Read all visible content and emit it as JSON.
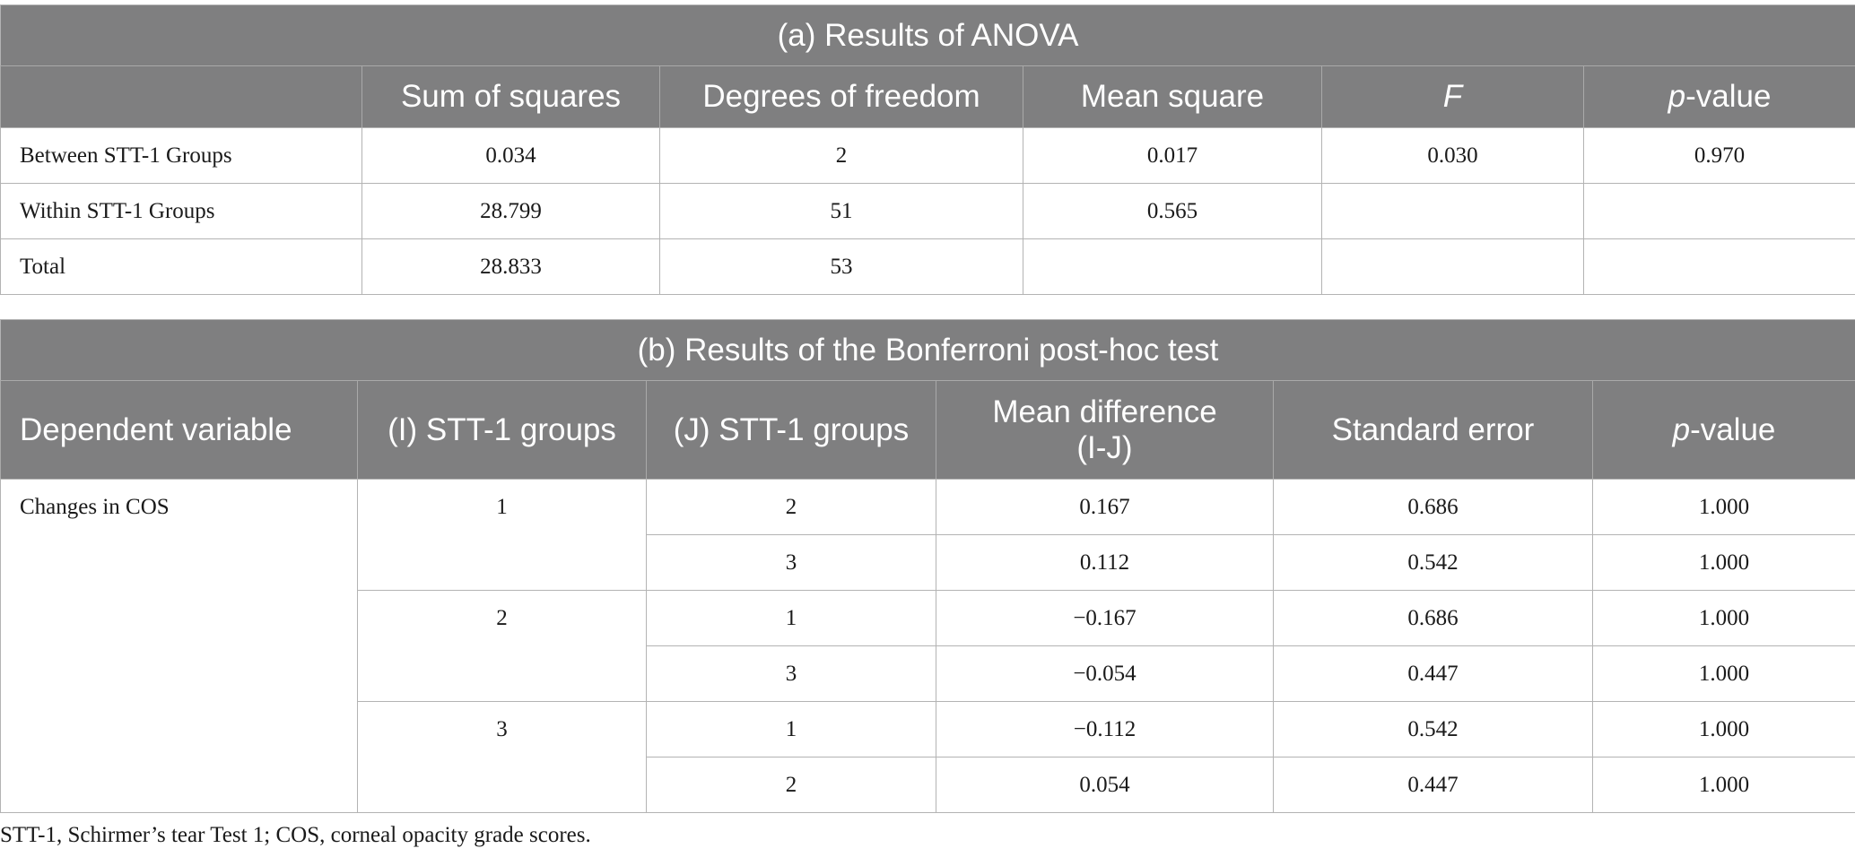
{
  "anova": {
    "title": "(a) Results of ANOVA",
    "headers": {
      "blank": "",
      "sum_of_squares": "Sum of squares",
      "df": "Degrees of freedom",
      "mean_square": "Mean square",
      "f": "F",
      "p_italic": "p",
      "p_suffix": "-value"
    },
    "rows": [
      {
        "label": "Between STT-1 Groups",
        "ss": "0.034",
        "df": "2",
        "ms": "0.017",
        "f": "0.030",
        "p": "0.970"
      },
      {
        "label": "Within STT-1 Groups",
        "ss": "28.799",
        "df": "51",
        "ms": "0.565",
        "f": "",
        "p": ""
      },
      {
        "label": "Total",
        "ss": "28.833",
        "df": "53",
        "ms": "",
        "f": "",
        "p": ""
      }
    ]
  },
  "bonferroni": {
    "title": "(b) Results of the Bonferroni post-hoc test",
    "headers": {
      "dependent_variable": "Dependent variable",
      "i_groups": "(I) STT-1 groups",
      "j_groups": "(J) STT-1 groups",
      "mean_diff_line1": "Mean difference",
      "mean_diff_line2": "(I-J)",
      "std_error": "Standard error",
      "p_italic": "p",
      "p_suffix": "-value"
    },
    "dependent_variable": "Changes in COS",
    "groups": [
      {
        "i": "1",
        "rows": [
          {
            "j": "2",
            "mean_diff": "0.167",
            "se": "0.686",
            "p": "1.000"
          },
          {
            "j": "3",
            "mean_diff": "0.112",
            "se": "0.542",
            "p": "1.000"
          }
        ]
      },
      {
        "i": "2",
        "rows": [
          {
            "j": "1",
            "mean_diff": "−0.167",
            "se": "0.686",
            "p": "1.000"
          },
          {
            "j": "3",
            "mean_diff": "−0.054",
            "se": "0.447",
            "p": "1.000"
          }
        ]
      },
      {
        "i": "3",
        "rows": [
          {
            "j": "1",
            "mean_diff": "−0.112",
            "se": "0.542",
            "p": "1.000"
          },
          {
            "j": "2",
            "mean_diff": "0.054",
            "se": "0.447",
            "p": "1.000"
          }
        ]
      }
    ]
  },
  "footnote": "STT-1, Schirmer’s tear Test 1; COS, corneal opacity grade scores."
}
